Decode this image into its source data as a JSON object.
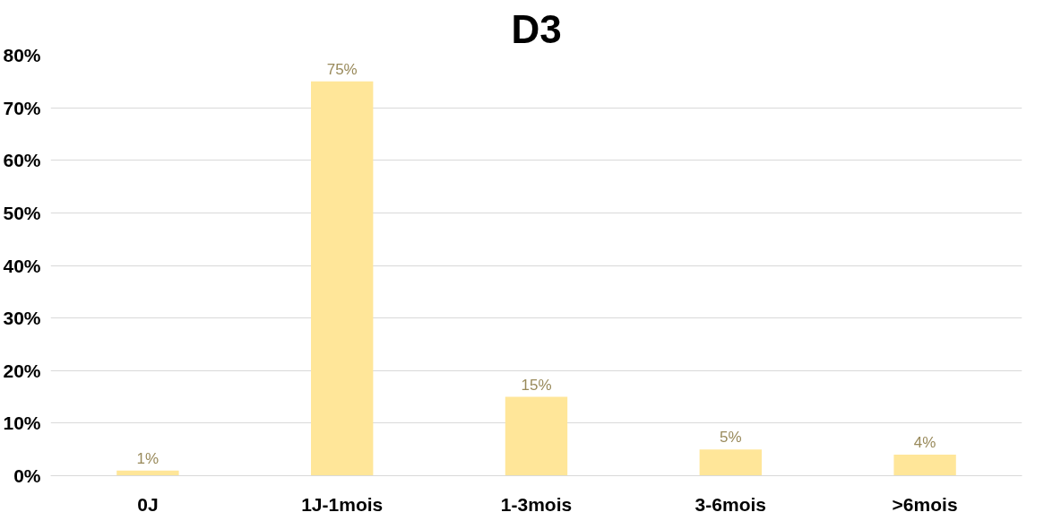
{
  "chart_data": {
    "type": "bar",
    "title": "D3",
    "categories": [
      "0J",
      "1J-1mois",
      "1-3mois",
      "3-6mois",
      ">6mois"
    ],
    "values": [
      1,
      75,
      15,
      5,
      4
    ],
    "value_labels": [
      "1%",
      "75%",
      "15%",
      "5%",
      "4%"
    ],
    "color": "#ffe699",
    "ylim": [
      0,
      80
    ],
    "yticks": [
      {
        "value": 0,
        "label": "0%"
      },
      {
        "value": 10,
        "label": "10%"
      },
      {
        "value": 20,
        "label": "20%"
      },
      {
        "value": 30,
        "label": "30%"
      },
      {
        "value": 40,
        "label": "40%"
      },
      {
        "value": 50,
        "label": "50%"
      },
      {
        "value": 60,
        "label": "60%"
      },
      {
        "value": 70,
        "label": "70%"
      },
      {
        "value": 80,
        "label": "80%"
      }
    ],
    "grid": "y"
  }
}
